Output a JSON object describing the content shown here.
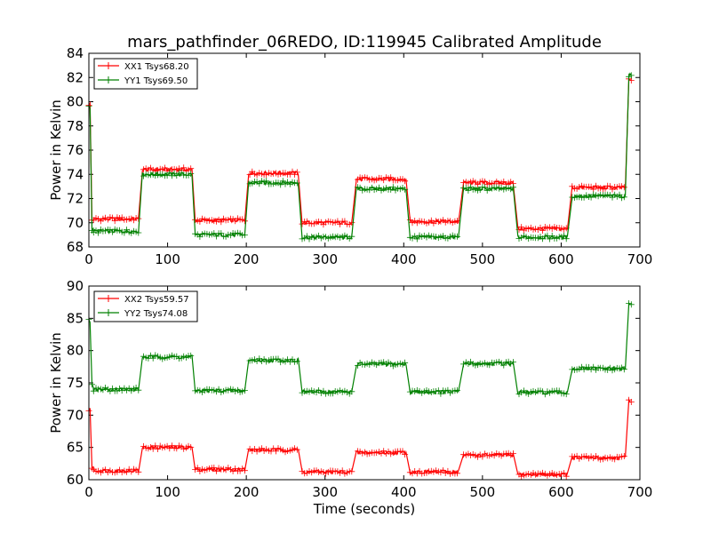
{
  "chart_data": [
    {
      "type": "line",
      "title": "mars_pathfinder_06REDO, ID:119945 Calibrated Amplitude",
      "xlabel": "",
      "ylabel": "Power in Kelvin",
      "xlim": [
        0,
        700
      ],
      "ylim": [
        68,
        84
      ],
      "xticks": [
        "0",
        "100",
        "200",
        "300",
        "400",
        "500",
        "600",
        "700"
      ],
      "yticks": [
        "68",
        "70",
        "72",
        "74",
        "76",
        "78",
        "80",
        "82",
        "84"
      ],
      "legend_position": "top-left",
      "series": [
        {
          "name": "XX1 Tsys68.20",
          "color": "#ff0000",
          "segments": [
            {
              "x0": 0,
              "x1": 2,
              "y": 79.8
            },
            {
              "x0": 4,
              "x1": 6,
              "y": 70.2
            },
            {
              "x0": 6,
              "x1": 64,
              "y": 70.3
            },
            {
              "x0": 68,
              "x1": 131,
              "y": 74.4
            },
            {
              "x0": 135,
              "x1": 198,
              "y": 70.2
            },
            {
              "x0": 203,
              "x1": 266,
              "y": 74.1
            },
            {
              "x0": 271,
              "x1": 335,
              "y": 70.0
            },
            {
              "x0": 340,
              "x1": 403,
              "y": 73.6
            },
            {
              "x0": 408,
              "x1": 470,
              "y": 70.1
            },
            {
              "x0": 476,
              "x1": 540,
              "y": 73.3
            },
            {
              "x0": 545,
              "x1": 609,
              "y": 69.5
            },
            {
              "x0": 614,
              "x1": 682,
              "y": 72.9
            },
            {
              "x0": 686,
              "x1": 689,
              "y": 81.8
            }
          ]
        },
        {
          "name": "YY1 Tsys69.50",
          "color": "#008000",
          "segments": [
            {
              "x0": 0,
              "x1": 2,
              "y": 79.6
            },
            {
              "x0": 4,
              "x1": 6,
              "y": 69.4
            },
            {
              "x0": 6,
              "x1": 64,
              "y": 69.3
            },
            {
              "x0": 68,
              "x1": 131,
              "y": 74.0
            },
            {
              "x0": 135,
              "x1": 198,
              "y": 69.0
            },
            {
              "x0": 203,
              "x1": 266,
              "y": 73.3
            },
            {
              "x0": 271,
              "x1": 335,
              "y": 68.8
            },
            {
              "x0": 340,
              "x1": 403,
              "y": 72.8
            },
            {
              "x0": 408,
              "x1": 470,
              "y": 68.8
            },
            {
              "x0": 476,
              "x1": 540,
              "y": 72.8
            },
            {
              "x0": 545,
              "x1": 609,
              "y": 68.8
            },
            {
              "x0": 614,
              "x1": 682,
              "y": 72.2
            },
            {
              "x0": 686,
              "x1": 689,
              "y": 82.2
            }
          ]
        }
      ]
    },
    {
      "type": "line",
      "title": "",
      "xlabel": "Time (seconds)",
      "ylabel": "Power in Kelvin",
      "xlim": [
        0,
        700
      ],
      "ylim": [
        60,
        90
      ],
      "xticks": [
        "0",
        "100",
        "200",
        "300",
        "400",
        "500",
        "600",
        "700"
      ],
      "yticks": [
        "60",
        "65",
        "70",
        "75",
        "80",
        "85",
        "90"
      ],
      "legend_position": "top-left",
      "series": [
        {
          "name": "XX2 Tsys59.57",
          "color": "#ff0000",
          "segments": [
            {
              "x0": 0,
              "x1": 2,
              "y": 70.8
            },
            {
              "x0": 4,
              "x1": 6,
              "y": 62.0
            },
            {
              "x0": 6,
              "x1": 64,
              "y": 61.4
            },
            {
              "x0": 68,
              "x1": 131,
              "y": 65.0
            },
            {
              "x0": 135,
              "x1": 198,
              "y": 61.6
            },
            {
              "x0": 203,
              "x1": 266,
              "y": 64.6
            },
            {
              "x0": 271,
              "x1": 335,
              "y": 61.2
            },
            {
              "x0": 340,
              "x1": 403,
              "y": 64.2
            },
            {
              "x0": 408,
              "x1": 470,
              "y": 61.2
            },
            {
              "x0": 476,
              "x1": 540,
              "y": 63.8
            },
            {
              "x0": 545,
              "x1": 609,
              "y": 60.8
            },
            {
              "x0": 614,
              "x1": 682,
              "y": 63.4
            },
            {
              "x0": 686,
              "x1": 689,
              "y": 72.3
            }
          ]
        },
        {
          "name": "YY2 Tsys74.08",
          "color": "#008000",
          "segments": [
            {
              "x0": 0,
              "x1": 2,
              "y": 84.6
            },
            {
              "x0": 4,
              "x1": 6,
              "y": 74.5
            },
            {
              "x0": 6,
              "x1": 64,
              "y": 74.0
            },
            {
              "x0": 68,
              "x1": 131,
              "y": 79.0
            },
            {
              "x0": 135,
              "x1": 198,
              "y": 73.8
            },
            {
              "x0": 203,
              "x1": 266,
              "y": 78.5
            },
            {
              "x0": 271,
              "x1": 335,
              "y": 73.6
            },
            {
              "x0": 340,
              "x1": 403,
              "y": 77.9
            },
            {
              "x0": 408,
              "x1": 470,
              "y": 73.6
            },
            {
              "x0": 476,
              "x1": 540,
              "y": 78.0
            },
            {
              "x0": 545,
              "x1": 609,
              "y": 73.5
            },
            {
              "x0": 614,
              "x1": 682,
              "y": 77.2
            },
            {
              "x0": 686,
              "x1": 689,
              "y": 87.2
            }
          ]
        }
      ]
    }
  ]
}
